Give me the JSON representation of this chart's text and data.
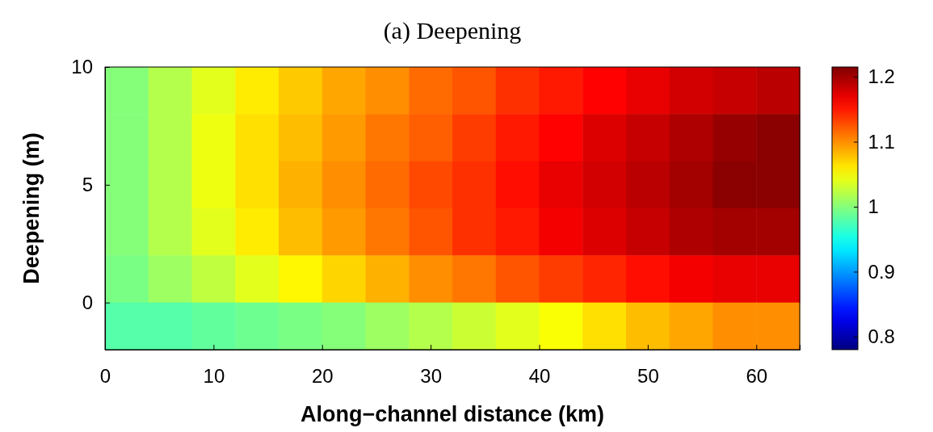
{
  "chart_data": {
    "type": "heatmap",
    "title": "(a) Deepening",
    "xlabel": "Along−channel distance (km)",
    "ylabel": "Deepening (m)",
    "x": [
      2,
      6,
      10,
      14,
      18,
      22,
      26,
      30,
      34,
      38,
      42,
      46,
      50,
      54,
      58,
      62
    ],
    "xlim": [
      0,
      64
    ],
    "xticks": [
      0,
      10,
      20,
      30,
      40,
      50,
      60
    ],
    "ylim": [
      -2,
      10
    ],
    "yticks": [
      0,
      5,
      10
    ],
    "cells": [
      [
        1.0,
        1.02,
        1.04,
        1.06,
        1.075,
        1.09,
        1.1,
        1.115,
        1.125,
        1.14,
        1.15,
        1.16,
        1.17,
        1.18,
        1.185,
        1.19
      ],
      [
        1.0,
        1.02,
        1.045,
        1.065,
        1.08,
        1.095,
        1.11,
        1.12,
        1.135,
        1.15,
        1.16,
        1.175,
        1.185,
        1.195,
        1.205,
        1.21
      ],
      [
        1.0,
        1.02,
        1.045,
        1.065,
        1.085,
        1.1,
        1.115,
        1.13,
        1.14,
        1.155,
        1.17,
        1.18,
        1.19,
        1.2,
        1.21,
        1.21
      ],
      [
        1.0,
        1.02,
        1.04,
        1.06,
        1.08,
        1.095,
        1.11,
        1.125,
        1.14,
        1.15,
        1.165,
        1.175,
        1.185,
        1.195,
        1.2,
        1.2
      ],
      [
        0.995,
        1.01,
        1.025,
        1.04,
        1.055,
        1.07,
        1.085,
        1.1,
        1.11,
        1.125,
        1.135,
        1.145,
        1.155,
        1.165,
        1.17,
        1.17
      ],
      [
        0.98,
        0.98,
        0.985,
        0.99,
        0.995,
        1.0,
        1.01,
        1.02,
        1.03,
        1.04,
        1.05,
        1.065,
        1.08,
        1.09,
        1.1,
        1.1
      ]
    ],
    "clim": [
      0.78,
      1.215
    ],
    "cticks": [
      0.8,
      0.9,
      1,
      1.1,
      1.2
    ]
  }
}
